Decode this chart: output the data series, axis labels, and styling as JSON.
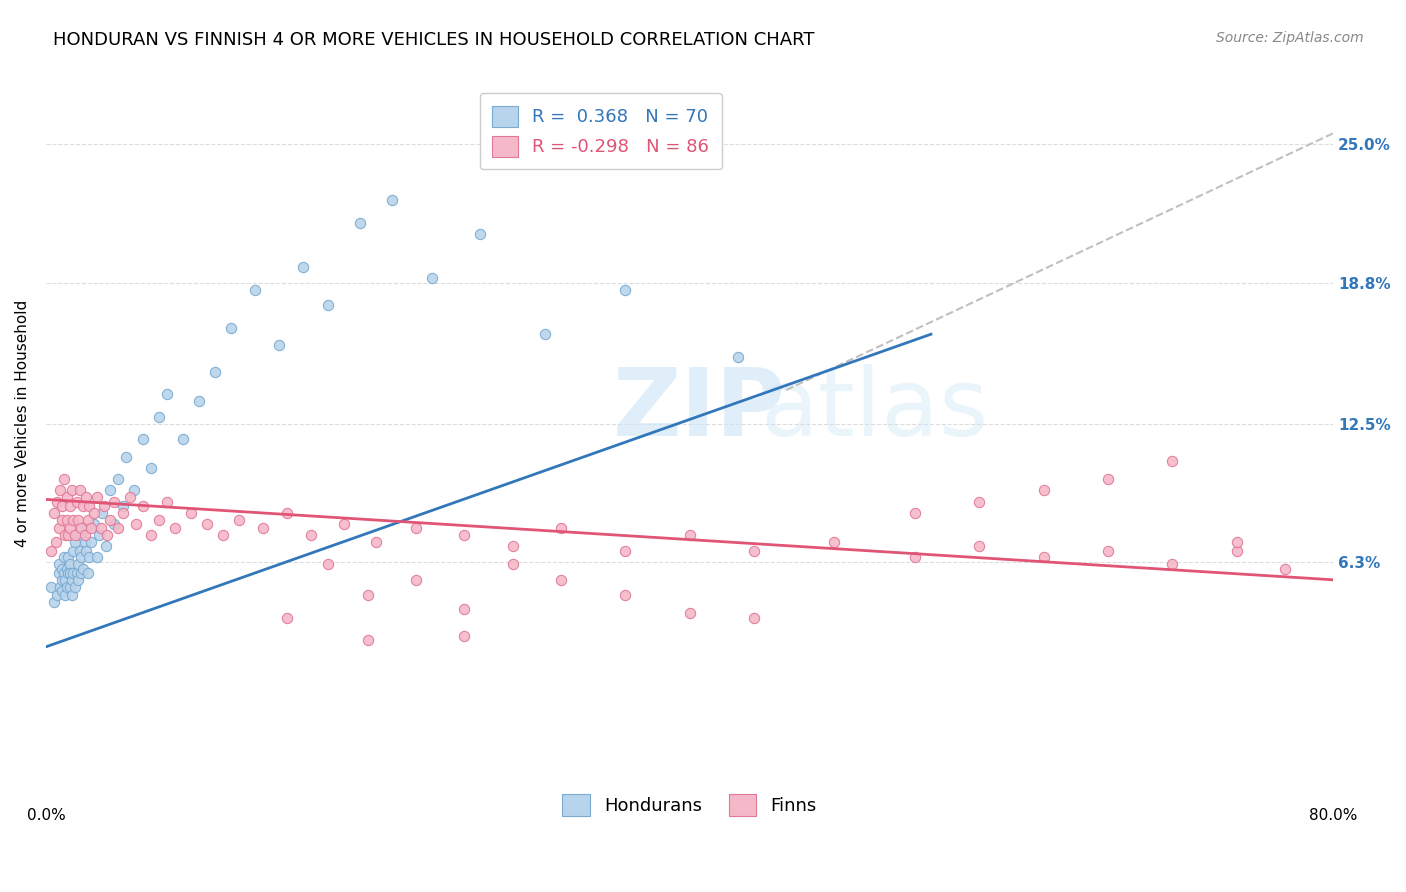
{
  "title": "HONDURAN VS FINNISH 4 OR MORE VEHICLES IN HOUSEHOLD CORRELATION CHART",
  "source": "Source: ZipAtlas.com",
  "ylabel": "4 or more Vehicles in Household",
  "ytick_labels": [
    "6.3%",
    "12.5%",
    "18.8%",
    "25.0%"
  ],
  "ytick_values": [
    0.063,
    0.125,
    0.188,
    0.25
  ],
  "xlim": [
    0.0,
    0.8
  ],
  "ylim": [
    -0.03,
    0.28
  ],
  "watermark_zip": "ZIP",
  "watermark_atlas": "atlas",
  "legend_hondurans_R": " 0.368",
  "legend_hondurans_N": "70",
  "legend_finns_R": "-0.298",
  "legend_finns_N": "86",
  "honduran_color": "#b8d4ec",
  "honduran_edge": "#7aaad0",
  "finn_color": "#f5b8c8",
  "finn_edge": "#e07898",
  "blue_line_color": "#3377bb",
  "pink_line_color": "#e05575",
  "dashed_line_color": "#c0c0c0",
  "title_fontsize": 13,
  "source_fontsize": 10,
  "axis_label_fontsize": 11,
  "tick_fontsize": 11,
  "legend_fontsize": 13,
  "scatter_size": 55,
  "blue_line_x0": 0.0,
  "blue_line_y0": 0.025,
  "blue_line_x1": 0.55,
  "blue_line_y1": 0.165,
  "pink_line_x0": 0.0,
  "pink_line_y0": 0.091,
  "pink_line_x1": 0.8,
  "pink_line_y1": 0.055,
  "dash_line_x0": 0.46,
  "dash_line_y0": 0.14,
  "dash_line_x1": 0.8,
  "dash_line_y1": 0.255,
  "honduran_points_x": [
    0.003,
    0.005,
    0.007,
    0.008,
    0.008,
    0.009,
    0.01,
    0.01,
    0.01,
    0.011,
    0.011,
    0.012,
    0.012,
    0.013,
    0.013,
    0.014,
    0.014,
    0.015,
    0.015,
    0.015,
    0.016,
    0.016,
    0.017,
    0.017,
    0.018,
    0.018,
    0.019,
    0.02,
    0.02,
    0.021,
    0.021,
    0.022,
    0.022,
    0.023,
    0.024,
    0.025,
    0.025,
    0.026,
    0.027,
    0.028,
    0.03,
    0.032,
    0.033,
    0.035,
    0.037,
    0.04,
    0.042,
    0.045,
    0.048,
    0.05,
    0.055,
    0.06,
    0.065,
    0.07,
    0.075,
    0.085,
    0.095,
    0.105,
    0.115,
    0.13,
    0.145,
    0.16,
    0.175,
    0.195,
    0.215,
    0.24,
    0.27,
    0.31,
    0.36,
    0.43
  ],
  "honduran_points_y": [
    0.052,
    0.045,
    0.048,
    0.062,
    0.058,
    0.052,
    0.06,
    0.055,
    0.05,
    0.065,
    0.058,
    0.048,
    0.055,
    0.06,
    0.052,
    0.065,
    0.058,
    0.062,
    0.052,
    0.058,
    0.048,
    0.055,
    0.068,
    0.058,
    0.072,
    0.052,
    0.058,
    0.055,
    0.062,
    0.068,
    0.075,
    0.058,
    0.065,
    0.06,
    0.072,
    0.068,
    0.078,
    0.058,
    0.065,
    0.072,
    0.08,
    0.065,
    0.075,
    0.085,
    0.07,
    0.095,
    0.08,
    0.1,
    0.088,
    0.11,
    0.095,
    0.118,
    0.105,
    0.128,
    0.138,
    0.118,
    0.135,
    0.148,
    0.168,
    0.185,
    0.16,
    0.195,
    0.178,
    0.215,
    0.225,
    0.19,
    0.21,
    0.165,
    0.185,
    0.155
  ],
  "finn_points_x": [
    0.003,
    0.005,
    0.006,
    0.007,
    0.008,
    0.009,
    0.01,
    0.01,
    0.011,
    0.012,
    0.013,
    0.013,
    0.014,
    0.015,
    0.015,
    0.016,
    0.017,
    0.018,
    0.019,
    0.02,
    0.021,
    0.022,
    0.023,
    0.024,
    0.025,
    0.026,
    0.027,
    0.028,
    0.03,
    0.032,
    0.034,
    0.036,
    0.038,
    0.04,
    0.042,
    0.045,
    0.048,
    0.052,
    0.056,
    0.06,
    0.065,
    0.07,
    0.075,
    0.08,
    0.09,
    0.1,
    0.11,
    0.12,
    0.135,
    0.15,
    0.165,
    0.185,
    0.205,
    0.23,
    0.26,
    0.29,
    0.32,
    0.36,
    0.4,
    0.44,
    0.49,
    0.54,
    0.58,
    0.62,
    0.66,
    0.7,
    0.74,
    0.77,
    0.32,
    0.36,
    0.4,
    0.26,
    0.44,
    0.29,
    0.54,
    0.58,
    0.62,
    0.66,
    0.7,
    0.74,
    0.2,
    0.23,
    0.26,
    0.15,
    0.175,
    0.2
  ],
  "finn_points_y": [
    0.068,
    0.085,
    0.072,
    0.09,
    0.078,
    0.095,
    0.082,
    0.088,
    0.1,
    0.075,
    0.092,
    0.082,
    0.075,
    0.088,
    0.078,
    0.095,
    0.082,
    0.075,
    0.09,
    0.082,
    0.095,
    0.078,
    0.088,
    0.075,
    0.092,
    0.082,
    0.088,
    0.078,
    0.085,
    0.092,
    0.078,
    0.088,
    0.075,
    0.082,
    0.09,
    0.078,
    0.085,
    0.092,
    0.08,
    0.088,
    0.075,
    0.082,
    0.09,
    0.078,
    0.085,
    0.08,
    0.075,
    0.082,
    0.078,
    0.085,
    0.075,
    0.08,
    0.072,
    0.078,
    0.075,
    0.07,
    0.078,
    0.068,
    0.075,
    0.068,
    0.072,
    0.065,
    0.07,
    0.065,
    0.068,
    0.062,
    0.068,
    0.06,
    0.055,
    0.048,
    0.04,
    0.042,
    0.038,
    0.062,
    0.085,
    0.09,
    0.095,
    0.1,
    0.108,
    0.072,
    0.048,
    0.055,
    0.03,
    0.038,
    0.062,
    0.028
  ]
}
